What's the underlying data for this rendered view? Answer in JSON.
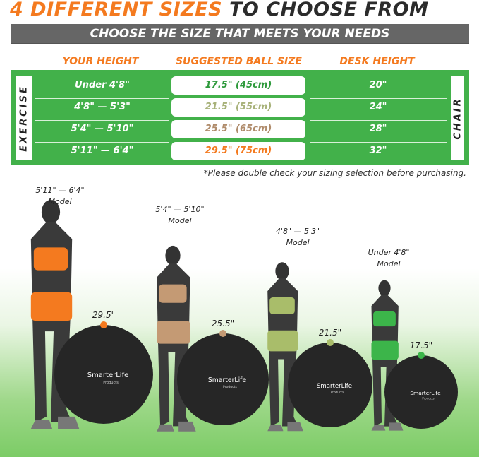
{
  "title": {
    "highlight": "4 DIFFERENT SIZES",
    "rest": "TO CHOOSE FROM"
  },
  "subtitle": "CHOOSE THE SIZE THAT MEETS YOUR NEEDS",
  "headers": [
    "YOUR HEIGHT",
    "SUGGESTED BALL SIZE",
    "DESK HEIGHT"
  ],
  "side_labels": {
    "left": "EXERCISE",
    "right": "CHAIR"
  },
  "rows": [
    {
      "height": "Under 4'8\"",
      "ball": "17.5\" (45cm)",
      "desk": "20\"",
      "color": "#2e9a3c"
    },
    {
      "height": "4'8\" — 5'3\"",
      "ball": "21.5\" (55cm)",
      "desk": "24\"",
      "color": "#a8b27a"
    },
    {
      "height": "5'4\" — 5'10\"",
      "ball": "25.5\" (65cm)",
      "desk": "28\"",
      "color": "#b08c6c"
    },
    {
      "height": "5'11\" — 6'4\"",
      "ball": "29.5\" (75cm)",
      "desk": "32\"",
      "color": "#f47a1f"
    }
  ],
  "note": "*Please double check your sizing selection before purchasing.",
  "models": [
    {
      "range": "5'11\" — 6'4\"",
      "label": "Model",
      "ball": "29.5\"",
      "color": "#f47a1f"
    },
    {
      "range": "5'4\" — 5'10\"",
      "label": "Model",
      "ball": "25.5\"",
      "color": "#c49a74"
    },
    {
      "range": "4'8\" — 5'3\"",
      "label": "Model",
      "ball": "21.5\"",
      "color": "#a9bd6a"
    },
    {
      "range": "Under 4'8\"",
      "label": "Model",
      "ball": "17.5\"",
      "color": "#3cb54a"
    }
  ],
  "brand": {
    "name": "SmarterLife",
    "tag": "Products"
  }
}
